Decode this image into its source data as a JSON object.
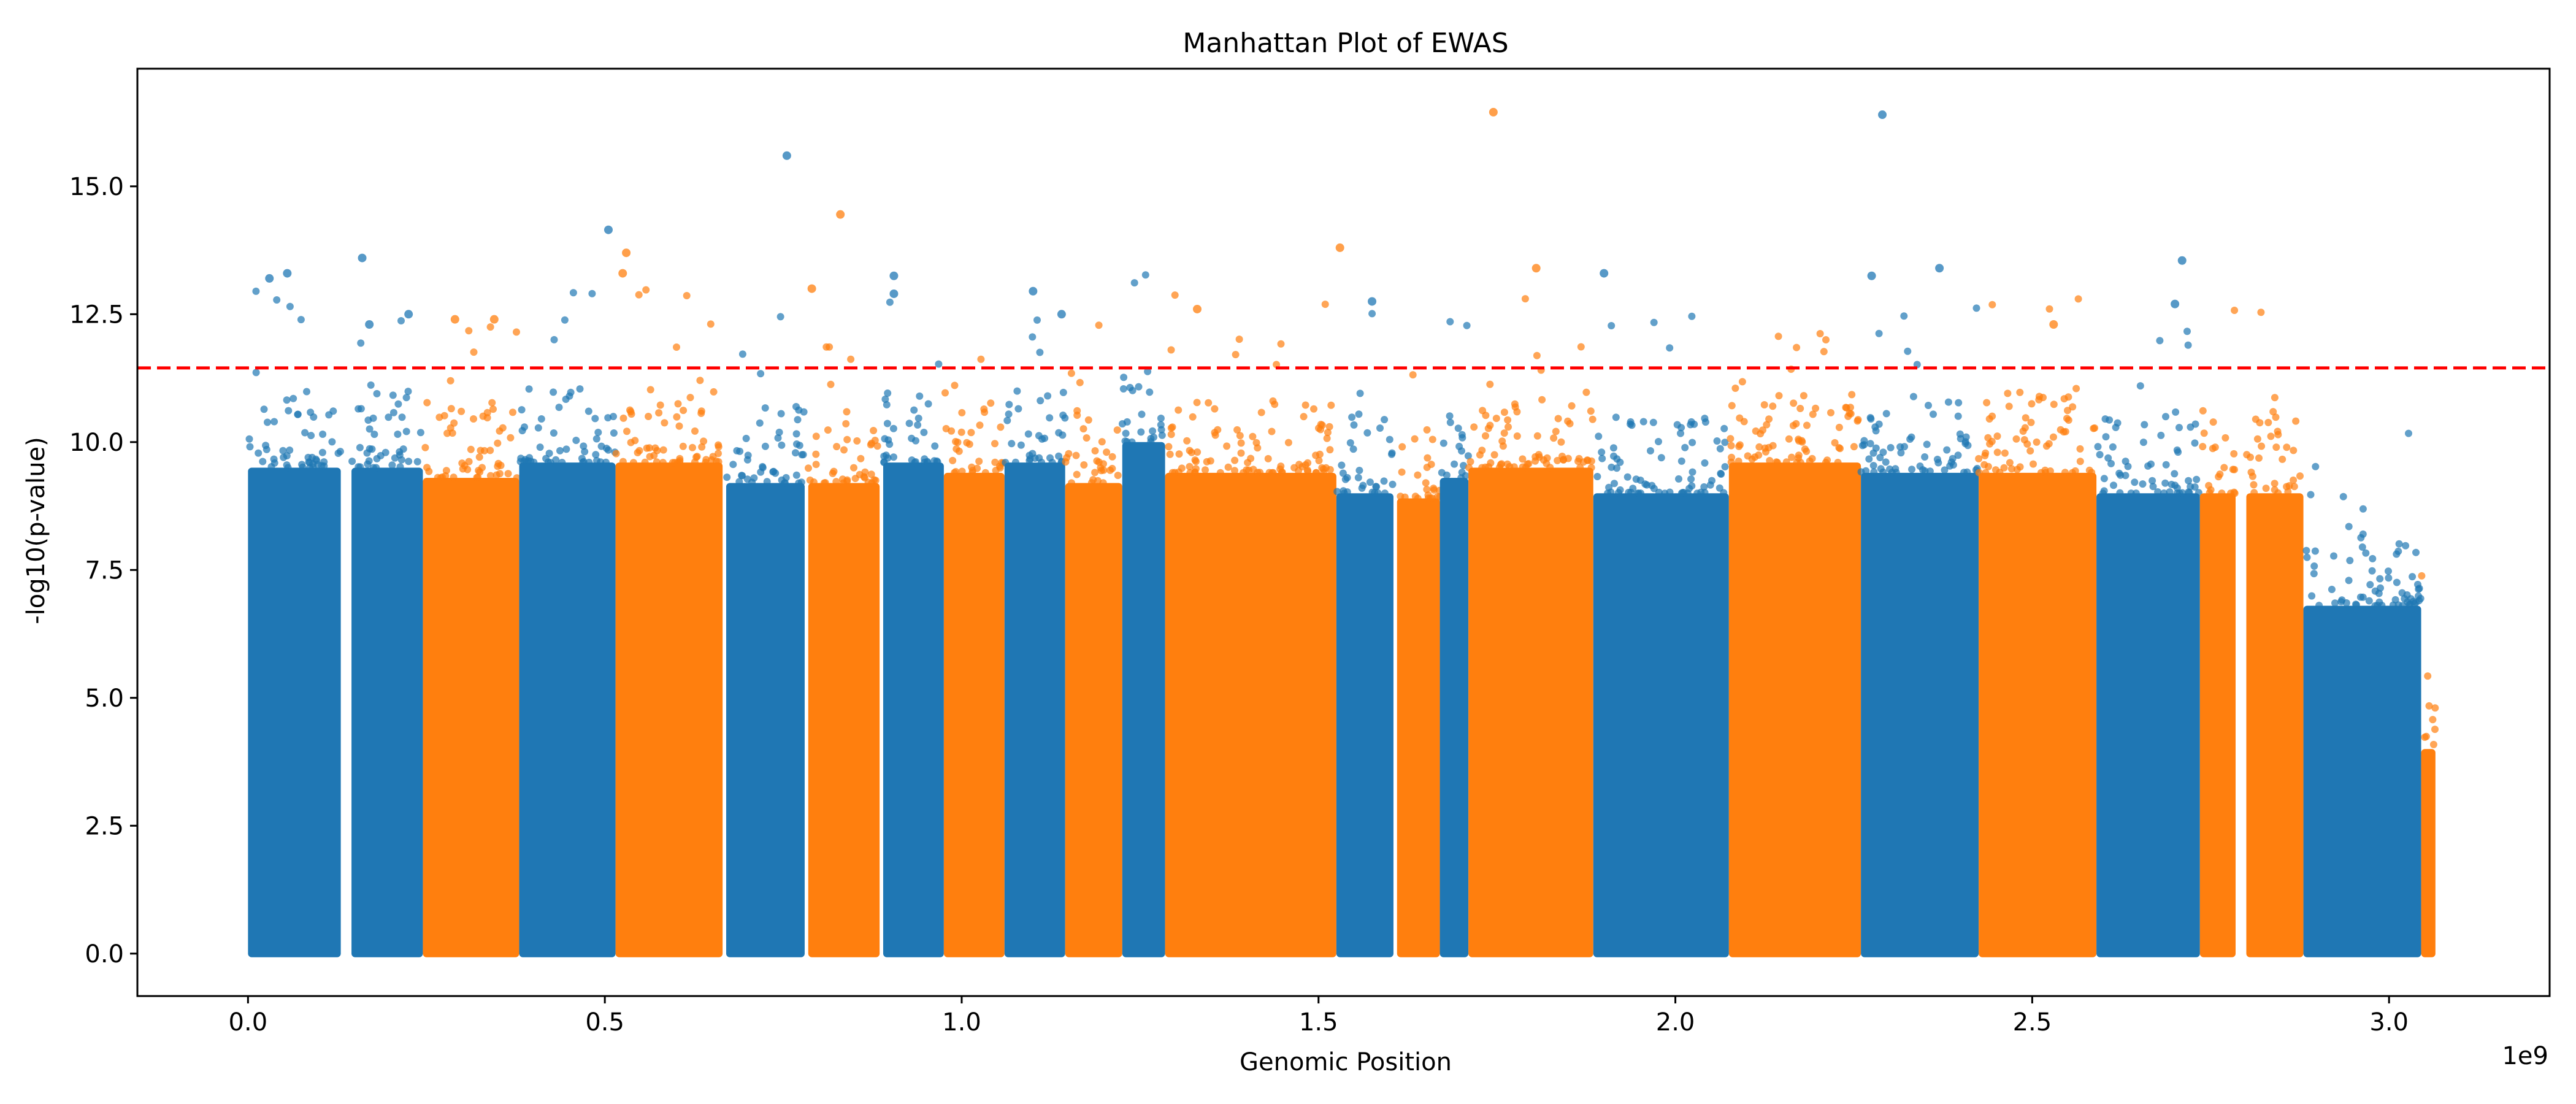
{
  "chart_data": {
    "type": "scatter",
    "title": "Manhattan Plot of EWAS",
    "xlabel": "Genomic Position",
    "ylabel": "-log10(p-value)",
    "x_offset_label": "1e9",
    "xlim": [
      -0.155,
      3.225
    ],
    "ylim": [
      -0.83,
      17.3
    ],
    "x_ticks": [
      0.0,
      0.5,
      1.0,
      1.5,
      2.0,
      2.5,
      3.0
    ],
    "x_tick_labels": [
      "0.0",
      "0.5",
      "1.0",
      "1.5",
      "2.0",
      "2.5",
      "3.0"
    ],
    "y_ticks": [
      0.0,
      2.5,
      5.0,
      7.5,
      10.0,
      12.5,
      15.0
    ],
    "y_tick_labels": [
      "0.0",
      "2.5",
      "5.0",
      "7.5",
      "10.0",
      "12.5",
      "15.0"
    ],
    "grid": false,
    "significance_threshold": 11.45,
    "threshold_style": "red dashed",
    "colors": {
      "blue": "#1f77b4",
      "orange": "#ff7f0e",
      "threshold": "#ff0000"
    },
    "chromosomes": [
      {
        "start": 0.0,
        "end": 0.13,
        "color": "blue",
        "top": 9.5
      },
      {
        "start": 0.145,
        "end": 0.245,
        "color": "blue",
        "top": 9.5
      },
      {
        "start": 0.245,
        "end": 0.38,
        "color": "orange",
        "top": 9.3
      },
      {
        "start": 0.38,
        "end": 0.515,
        "color": "blue",
        "top": 9.6
      },
      {
        "start": 0.515,
        "end": 0.665,
        "color": "orange",
        "top": 9.6
      },
      {
        "start": 0.67,
        "end": 0.78,
        "color": "blue",
        "top": 9.2
      },
      {
        "start": 0.785,
        "end": 0.885,
        "color": "orange",
        "top": 9.2
      },
      {
        "start": 0.89,
        "end": 0.975,
        "color": "blue",
        "top": 9.6
      },
      {
        "start": 0.975,
        "end": 1.06,
        "color": "orange",
        "top": 9.4
      },
      {
        "start": 1.06,
        "end": 1.145,
        "color": "blue",
        "top": 9.6
      },
      {
        "start": 1.145,
        "end": 1.225,
        "color": "orange",
        "top": 9.2
      },
      {
        "start": 1.225,
        "end": 1.285,
        "color": "blue",
        "top": 10.0
      },
      {
        "start": 1.285,
        "end": 1.525,
        "color": "orange",
        "top": 9.4
      },
      {
        "start": 1.525,
        "end": 1.605,
        "color": "blue",
        "top": 9.0
      },
      {
        "start": 1.61,
        "end": 1.67,
        "color": "orange",
        "top": 8.9
      },
      {
        "start": 1.67,
        "end": 1.71,
        "color": "blue",
        "top": 9.3
      },
      {
        "start": 1.71,
        "end": 1.885,
        "color": "orange",
        "top": 9.5
      },
      {
        "start": 1.885,
        "end": 2.075,
        "color": "blue",
        "top": 9.0
      },
      {
        "start": 2.075,
        "end": 2.26,
        "color": "orange",
        "top": 9.6
      },
      {
        "start": 2.26,
        "end": 2.425,
        "color": "blue",
        "top": 9.4
      },
      {
        "start": 2.425,
        "end": 2.59,
        "color": "orange",
        "top": 9.4
      },
      {
        "start": 2.59,
        "end": 2.735,
        "color": "blue",
        "top": 9.0
      },
      {
        "start": 2.735,
        "end": 2.785,
        "color": "orange",
        "top": 9.0
      },
      {
        "start": 2.8,
        "end": 2.88,
        "color": "orange",
        "top": 9.0
      },
      {
        "start": 2.88,
        "end": 3.045,
        "color": "blue",
        "top": 6.8
      },
      {
        "start": 3.045,
        "end": 3.065,
        "color": "orange",
        "top": 4.0
      }
    ],
    "highlighted_points": [
      {
        "x": 0.03,
        "y": 13.2,
        "color": "blue"
      },
      {
        "x": 0.055,
        "y": 13.3,
        "color": "blue"
      },
      {
        "x": 0.16,
        "y": 13.6,
        "color": "blue"
      },
      {
        "x": 0.17,
        "y": 12.3,
        "color": "blue"
      },
      {
        "x": 0.225,
        "y": 12.5,
        "color": "blue"
      },
      {
        "x": 0.29,
        "y": 12.4,
        "color": "orange"
      },
      {
        "x": 0.345,
        "y": 12.4,
        "color": "orange"
      },
      {
        "x": 0.505,
        "y": 14.15,
        "color": "blue"
      },
      {
        "x": 0.53,
        "y": 13.7,
        "color": "orange"
      },
      {
        "x": 0.525,
        "y": 13.3,
        "color": "orange"
      },
      {
        "x": 0.755,
        "y": 15.6,
        "color": "blue"
      },
      {
        "x": 0.79,
        "y": 13.0,
        "color": "orange"
      },
      {
        "x": 0.83,
        "y": 14.45,
        "color": "orange"
      },
      {
        "x": 0.905,
        "y": 13.25,
        "color": "blue"
      },
      {
        "x": 0.905,
        "y": 12.9,
        "color": "blue"
      },
      {
        "x": 1.1,
        "y": 12.95,
        "color": "blue"
      },
      {
        "x": 1.14,
        "y": 12.5,
        "color": "blue"
      },
      {
        "x": 1.33,
        "y": 12.6,
        "color": "orange"
      },
      {
        "x": 1.53,
        "y": 13.8,
        "color": "orange"
      },
      {
        "x": 1.575,
        "y": 12.75,
        "color": "blue"
      },
      {
        "x": 1.745,
        "y": 16.45,
        "color": "orange"
      },
      {
        "x": 1.805,
        "y": 13.4,
        "color": "orange"
      },
      {
        "x": 1.9,
        "y": 13.3,
        "color": "blue"
      },
      {
        "x": 2.29,
        "y": 16.4,
        "color": "blue"
      },
      {
        "x": 2.275,
        "y": 13.25,
        "color": "blue"
      },
      {
        "x": 2.37,
        "y": 13.4,
        "color": "blue"
      },
      {
        "x": 2.71,
        "y": 13.55,
        "color": "blue"
      },
      {
        "x": 2.7,
        "y": 12.7,
        "color": "blue"
      },
      {
        "x": 2.53,
        "y": 12.3,
        "color": "orange"
      }
    ]
  }
}
